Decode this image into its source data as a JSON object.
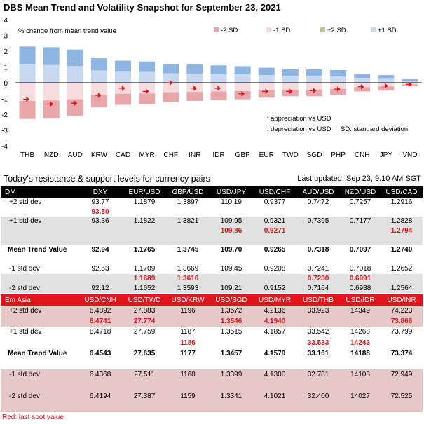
{
  "chart_title": "DBS Mean Trend and Volatility Snapshot for September 23, 2021",
  "chart_data": {
    "type": "bar",
    "ylabel": "% change from mean trend value",
    "ylim": [
      -4,
      4
    ],
    "yticks": [
      "4",
      "3",
      "2",
      "1",
      "0",
      "-1",
      "-2",
      "-3",
      "-4"
    ],
    "categories": [
      "THB",
      "NZD",
      "AUD",
      "KRW",
      "CAD",
      "MYR",
      "CHF",
      "INR",
      "IDR",
      "GBP",
      "EUR",
      "TWD",
      "SGD",
      "PHP",
      "CNH",
      "JPY",
      "VND"
    ],
    "plus2sd": [
      2.3,
      2.25,
      2.1,
      1.55,
      1.4,
      1.35,
      1.2,
      1.15,
      1.1,
      1.05,
      0.95,
      0.85,
      0.85,
      0.8,
      0.55,
      0.48,
      0.22
    ],
    "plus1sd": [
      1.15,
      1.12,
      1.05,
      0.78,
      0.7,
      0.68,
      0.6,
      0.58,
      0.55,
      0.53,
      0.48,
      0.43,
      0.43,
      0.4,
      0.28,
      0.24,
      0.11
    ],
    "minus1sd": [
      -1.15,
      -1.12,
      -1.05,
      -0.78,
      -0.7,
      -0.68,
      -0.6,
      -0.58,
      -0.55,
      -0.53,
      -0.48,
      -0.43,
      -0.43,
      -0.4,
      -0.28,
      -0.24,
      -0.11
    ],
    "minus2sd": [
      -2.3,
      -2.25,
      -2.1,
      -1.55,
      -1.4,
      -1.35,
      -1.2,
      -1.15,
      -1.1,
      -1.05,
      -0.95,
      -0.85,
      -0.85,
      -0.8,
      -0.55,
      -0.48,
      -0.22
    ],
    "spot": [
      -1.05,
      -1.35,
      -1.3,
      -0.8,
      -0.35,
      -0.55,
      0.0,
      -0.35,
      -0.35,
      -0.7,
      -0.55,
      -0.55,
      -0.5,
      -0.4,
      -0.25,
      -0.2,
      -0.1
    ],
    "legend": [
      "-2 SD",
      "-1 SD",
      "+2 SD",
      "+1 SD"
    ],
    "legend_position": "top-right",
    "annotations": [
      "appreciation vs USD",
      "depreciation vs USD",
      "SD: standard deviation"
    ],
    "colors": {
      "minus2sd": "#e9a6aa",
      "minus1sd": "#f6dcdd",
      "plus2sd": "#8eb4e3",
      "plus1sd": "#c6d9f1",
      "plus2sd_legend": "#c4bd97",
      "spot": "#e0151b",
      "zero_line": "#000000"
    }
  },
  "levels_title": "Today's resistance & support levels for currency pairs",
  "last_updated": "Last updated: Sep 23, 9:10 AM SGT",
  "dm": {
    "header": [
      "DM",
      "DXY",
      "EUR/USD",
      "GBP/USD",
      "USD/JPY",
      "USD/CHF",
      "AUD/USD",
      "NZD/USD",
      "USD/CAD"
    ],
    "rows": [
      {
        "style": "dm-odd",
        "bold": false,
        "cells": [
          "+2 std dev",
          "93.77",
          "1.1879",
          "1.3897",
          "110.19",
          "0.9377",
          "0.7472",
          "0.7257",
          "1.2916"
        ]
      },
      {
        "style": "dm-odd",
        "bold": false,
        "cells": [
          "",
          "93.50",
          "",
          "",
          "",
          "",
          "",
          "",
          ""
        ],
        "spot": true
      },
      {
        "style": "dm-even",
        "bold": false,
        "cells": [
          "+1 std dev",
          "93.36",
          "1.1822",
          "1.3821",
          "109.95",
          "0.9321",
          "0.7395",
          "0.7177",
          "1.2828"
        ]
      },
      {
        "style": "dm-even",
        "bold": false,
        "cells": [
          "",
          "",
          "",
          "",
          "109.86",
          "0.9271",
          "",
          "",
          "1.2794"
        ],
        "spot": true
      },
      {
        "style": "dm-even",
        "bold": false,
        "cells": [
          "",
          "",
          "",
          "",
          "",
          "",
          "",
          "",
          ""
        ]
      },
      {
        "style": "dm-odd",
        "bold": true,
        "cells": [
          "Mean Trend Value",
          "92.94",
          "1.1765",
          "1.3745",
          "109.70",
          "0.9265",
          "0.7318",
          "0.7097",
          "1.2740"
        ]
      },
      {
        "style": "dm-odd",
        "bold": false,
        "cells": [
          "",
          "",
          "",
          "",
          "",
          "",
          "",
          "",
          ""
        ]
      },
      {
        "style": "dm-odd",
        "bold": false,
        "cells": [
          "-1 std dev",
          "92.53",
          "1.1709",
          "1.3669",
          "109.45",
          "0.9208",
          "0.7241",
          "0.7018",
          "1.2652"
        ]
      },
      {
        "style": "dm-even",
        "bold": false,
        "cells": [
          "",
          "",
          "1.1689",
          "1.3616",
          "",
          "",
          "0.7230",
          "0.6991",
          ""
        ],
        "spot": true
      },
      {
        "style": "dm-even",
        "bold": false,
        "cells": [
          "-2 std dev",
          "92.12",
          "1.1652",
          "1.3593",
          "109.21",
          "0.9152",
          "0.7164",
          "0.6938",
          "1.2564"
        ]
      }
    ]
  },
  "em": {
    "header": [
      "Em Asia",
      "USD/CNH",
      "USD/TWD",
      "USD/KRW",
      "USD/SGD",
      "USD/MYR",
      "USD/THB",
      "USD/IDR",
      "USD/INR"
    ],
    "rows": [
      {
        "style": "em-even",
        "bold": false,
        "cells": [
          "+2 std dev",
          "6.4892",
          "27.883",
          "1196",
          "1.3572",
          "4.2136",
          "33.923",
          "14349",
          "74.223"
        ]
      },
      {
        "style": "em-even",
        "bold": false,
        "cells": [
          "",
          "6.4741",
          "27.774",
          "",
          "1.3546",
          "4.1940",
          "",
          "",
          "73.866"
        ],
        "spot": true
      },
      {
        "style": "em-odd",
        "bold": false,
        "cells": [
          "+1 std dev",
          "6.4718",
          "27.759",
          "1187",
          "1.3515",
          "4.1857",
          "33.542",
          "14268",
          "73.799"
        ]
      },
      {
        "style": "em-odd",
        "bold": false,
        "cells": [
          "",
          "",
          "",
          "1186",
          "",
          "",
          "33.533",
          "14243",
          ""
        ],
        "spot": true
      },
      {
        "style": "em-odd",
        "bold": true,
        "cells": [
          "Mean Trend Value",
          "6.4543",
          "27.635",
          "1177",
          "1.3457",
          "4.1579",
          "33.161",
          "14188",
          "73.374"
        ]
      },
      {
        "style": "em-odd",
        "bold": false,
        "cells": [
          "",
          "",
          "",
          "",
          "",
          "",
          "",
          "",
          ""
        ]
      },
      {
        "style": "em-even",
        "bold": false,
        "cells": [
          "-1 std dev",
          "6.4368",
          "27.511",
          "1168",
          "1.3399",
          "4.1300",
          "32.781",
          "14108",
          "72.949"
        ]
      },
      {
        "style": "em-even",
        "bold": false,
        "cells": [
          "",
          "",
          "",
          "",
          "",
          "",
          "",
          "",
          ""
        ]
      },
      {
        "style": "em-even",
        "bold": false,
        "cells": [
          "-2 std dev",
          "6.4194",
          "27.387",
          "1159",
          "1.3341",
          "4.1021",
          "32.400",
          "14027",
          "72.525"
        ]
      },
      {
        "style": "em-even",
        "bold": false,
        "cells": [
          "",
          "",
          "",
          "",
          "",
          "",
          "",
          "",
          ""
        ]
      }
    ]
  },
  "footnote": "Red: last spot value"
}
